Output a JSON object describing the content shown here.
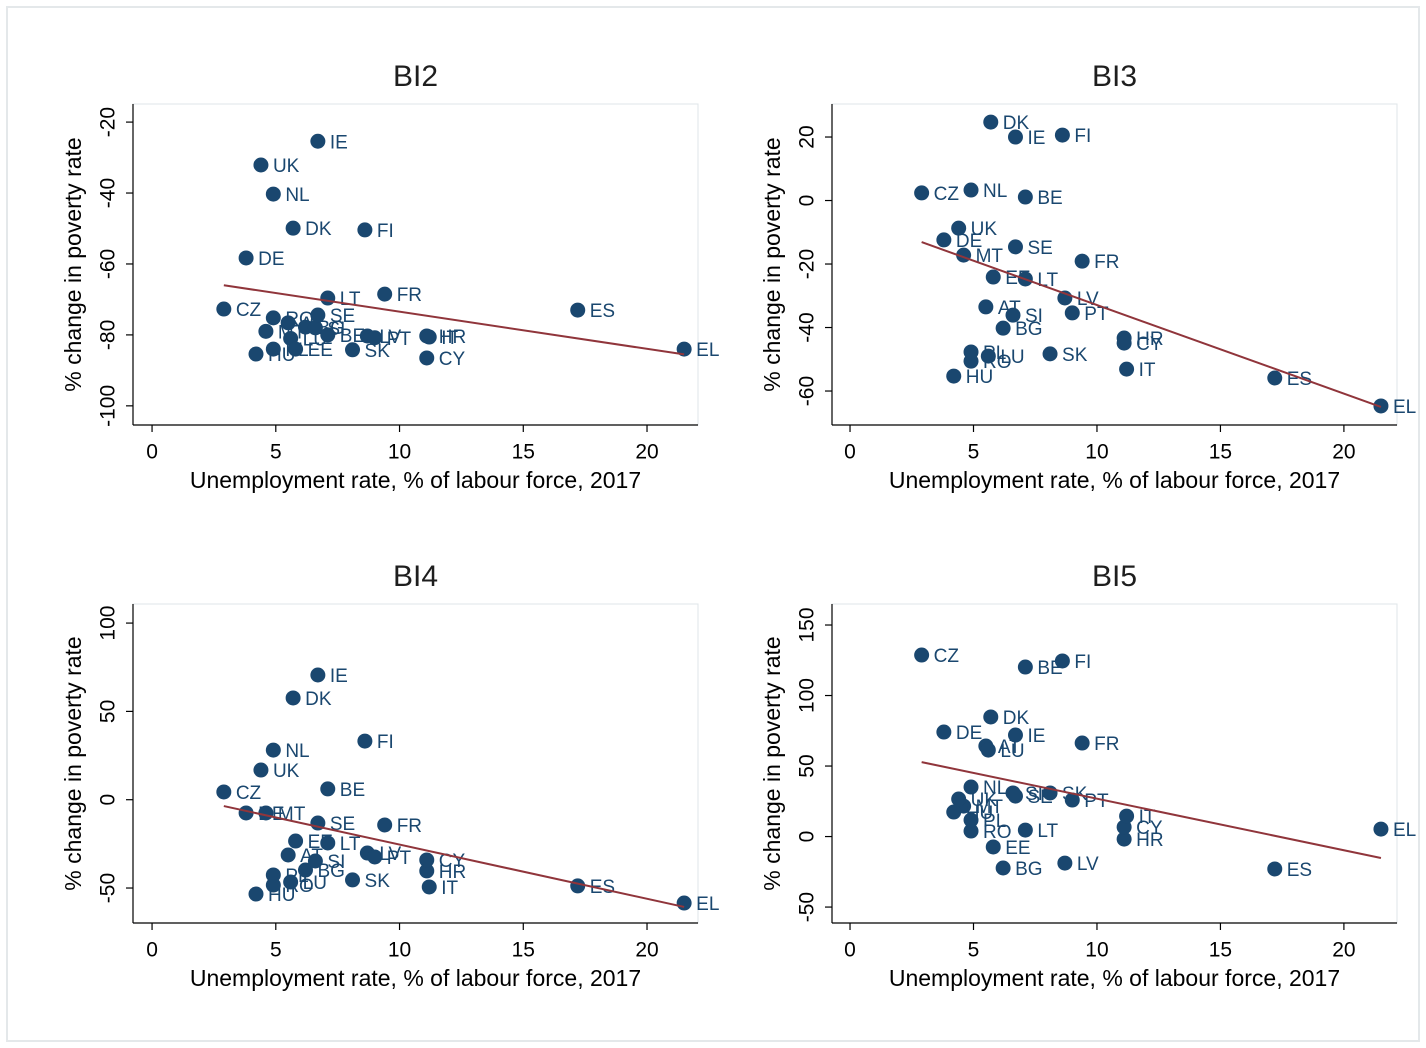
{
  "chart_data": [
    {
      "type": "scatter",
      "title": "BI2",
      "x_label": "Unemployment rate, % of labour force, 2017",
      "y_label": "% change in poverty rate",
      "point_labels": [
        "CZ",
        "DE",
        "MT",
        "UK",
        "HU",
        "NL",
        "RO",
        "PL",
        "DK",
        "AT",
        "LU",
        "EE",
        "BG",
        "SI",
        "IE",
        "SE",
        "BE",
        "LT",
        "SK",
        "FI",
        "LV",
        "PT",
        "FR",
        "HR",
        "CY",
        "IT",
        "ES",
        "EL"
      ],
      "x": [
        2.9,
        3.8,
        4.6,
        4.4,
        4.2,
        4.9,
        4.9,
        4.9,
        5.7,
        5.5,
        5.6,
        5.8,
        6.2,
        6.6,
        6.7,
        6.7,
        7.1,
        7.1,
        8.1,
        8.6,
        8.7,
        9.0,
        9.4,
        11.1,
        11.1,
        11.2,
        17.2,
        21.5
      ],
      "values": [
        -72.7,
        -58.3,
        -79,
        -32.1,
        -85.4,
        -40.3,
        -75.2,
        -84,
        -49.9,
        -76.6,
        -81,
        -84,
        -77.8,
        -78,
        -25.4,
        -74.4,
        -80,
        -69.6,
        -84.2,
        -50.4,
        -80.3,
        -80.8,
        -68.5,
        -80.3,
        -86.5,
        -80.6,
        -73,
        -84
      ],
      "color": "#1a476f",
      "fit_line": {
        "x": [
          2.9,
          21.5
        ],
        "values": [
          -66,
          -85.5
        ],
        "color": "#90353b"
      },
      "xlim": [
        -0.77,
        22.06
      ],
      "ylim": [
        -105.4,
        -14.9
      ],
      "xticks": [
        0,
        5,
        10,
        15,
        20
      ],
      "yticks": [
        -100,
        -80,
        -60,
        -40,
        -20
      ]
    },
    {
      "type": "scatter",
      "title": "BI3",
      "x_label": "Unemployment rate, % of labour force, 2017",
      "y_label": "% change in poverty rate",
      "point_labels": [
        "CZ",
        "DE",
        "MT",
        "UK",
        "HU",
        "NL",
        "RO",
        "PL",
        "DK",
        "AT",
        "LU",
        "EE",
        "BG",
        "SI",
        "IE",
        "SE",
        "BE",
        "LT",
        "SK",
        "FI",
        "LV",
        "PT",
        "FR",
        "HR",
        "CY",
        "IT",
        "ES",
        "EL"
      ],
      "x": [
        2.9,
        3.8,
        4.6,
        4.4,
        4.2,
        4.9,
        4.9,
        4.9,
        5.7,
        5.5,
        5.6,
        5.8,
        6.2,
        6.6,
        6.7,
        6.7,
        7.1,
        7.1,
        8.1,
        8.6,
        8.7,
        9.0,
        9.4,
        11.1,
        11.1,
        11.2,
        17.2,
        21.5
      ],
      "values": [
        2.4,
        -12.4,
        -17.2,
        -8.7,
        -55.3,
        3.3,
        -50.6,
        -47.7,
        24.7,
        -33.5,
        -49,
        -24.1,
        -40.2,
        -36.1,
        20,
        -14.6,
        1.1,
        -24.7,
        -48.3,
        20.6,
        -30.7,
        -35.4,
        -19.1,
        -43.3,
        -44.9,
        -53.1,
        -55.9,
        -64.7
      ],
      "color": "#1a476f",
      "fit_line": {
        "x": [
          2.9,
          21.5
        ],
        "values": [
          -13.1,
          -65
        ],
        "color": "#90353b"
      },
      "xlim": [
        -0.73,
        22.15
      ],
      "ylim": [
        -70.7,
        30.4
      ],
      "xticks": [
        0,
        5,
        10,
        15,
        20
      ],
      "yticks": [
        -60,
        -40,
        -20,
        0,
        20
      ]
    },
    {
      "type": "scatter",
      "title": "BI4",
      "x_label": "Unemployment rate, % of labour force, 2017",
      "y_label": "% change in poverty rate",
      "point_labels": [
        "CZ",
        "DE",
        "MT",
        "UK",
        "HU",
        "NL",
        "RO",
        "PL",
        "DK",
        "AT",
        "LU",
        "EE",
        "BG",
        "SI",
        "IE",
        "SE",
        "BE",
        "LT",
        "SK",
        "FI",
        "LV",
        "PT",
        "FR",
        "HR",
        "CY",
        "IT",
        "ES",
        "EL"
      ],
      "x": [
        2.9,
        3.8,
        4.6,
        4.4,
        4.2,
        4.9,
        4.9,
        4.9,
        5.7,
        5.5,
        5.6,
        5.8,
        6.2,
        6.6,
        6.7,
        6.7,
        7.1,
        7.1,
        8.1,
        8.6,
        8.7,
        9.0,
        9.4,
        11.1,
        11.1,
        11.2,
        17.2,
        21.5
      ],
      "values": [
        4.4,
        -7.5,
        -7.5,
        16.8,
        -53.4,
        28.1,
        -48.3,
        -42.6,
        57.6,
        -31.3,
        -46.6,
        -23.4,
        -39.8,
        -34.7,
        70.6,
        -13.2,
        6.1,
        -24.5,
        -45.4,
        33.2,
        -30.2,
        -32.4,
        -14.3,
        -40.3,
        -34.1,
        -49.4,
        -48.8,
        -58.5
      ],
      "color": "#1a476f",
      "fit_line": {
        "x": [
          2.9,
          21.5
        ],
        "values": [
          -3.6,
          -60.7
        ],
        "color": "#90353b"
      },
      "xlim": [
        -0.77,
        22.06
      ],
      "ylim": [
        -69.8,
        110.8
      ],
      "xticks": [
        0,
        5,
        10,
        15,
        20
      ],
      "yticks": [
        -50,
        0,
        50,
        100
      ]
    },
    {
      "type": "scatter",
      "title": "BI5",
      "x_label": "Unemployment rate, % of labour force, 2017",
      "y_label": "% change in poverty rate",
      "point_labels": [
        "CZ",
        "DE",
        "MT",
        "UK",
        "HU",
        "NL",
        "RO",
        "PL",
        "DK",
        "AT",
        "LU",
        "EE",
        "BG",
        "SI",
        "IE",
        "SE",
        "BE",
        "LT",
        "SK",
        "FI",
        "LV",
        "PT",
        "FR",
        "HR",
        "CY",
        "IT",
        "ES",
        "EL"
      ],
      "x": [
        2.9,
        3.8,
        4.6,
        4.4,
        4.2,
        4.9,
        4.9,
        4.9,
        5.7,
        5.5,
        5.6,
        5.8,
        6.2,
        6.6,
        6.7,
        6.7,
        7.1,
        7.1,
        8.1,
        8.6,
        8.7,
        9.0,
        9.4,
        11.1,
        11.1,
        11.2,
        17.2,
        21.5
      ],
      "values": [
        128.7,
        74.1,
        21.6,
        26.6,
        17.4,
        35.1,
        3.9,
        11.7,
        84.8,
        64.2,
        61.3,
        -7.4,
        -22.3,
        30.9,
        72,
        28.7,
        120.2,
        4.6,
        30.9,
        124.5,
        -18.8,
        25.9,
        66.3,
        -1.8,
        6.7,
        14.5,
        -23,
        5.3
      ],
      "color": "#1a476f",
      "fit_line": {
        "x": [
          2.9,
          21.5
        ],
        "values": [
          52.8,
          -15.2
        ],
        "color": "#90353b"
      },
      "xlim": [
        -0.73,
        22.15
      ],
      "ylim": [
        -61.3,
        164.9
      ],
      "xticks": [
        0,
        5,
        10,
        15,
        20
      ],
      "yticks": [
        -50,
        0,
        50,
        100,
        150
      ]
    }
  ]
}
